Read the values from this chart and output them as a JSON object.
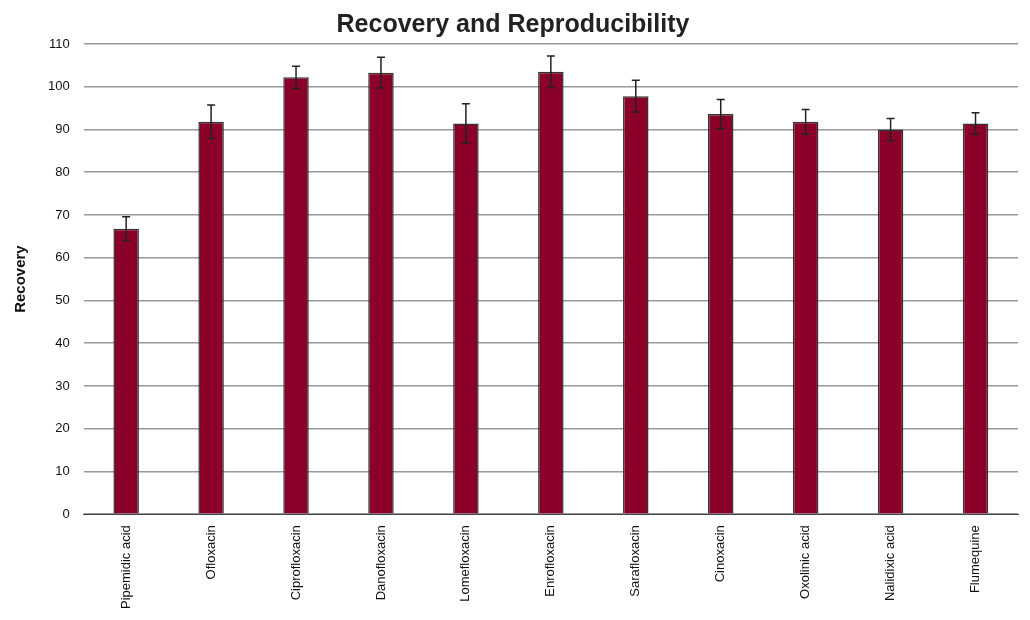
{
  "chart_data": {
    "type": "bar",
    "title": "Recovery and Reproducibility",
    "ylabel": "Recovery",
    "categories": [
      "Pipemidic acid",
      "Ofloxacin",
      "Ciprofloxacin",
      "Danofloxacin",
      "Lomefloxacin",
      "Enrofloxacin",
      "Sarafloxacin",
      "Cinoxacin",
      "Oxolinic acid",
      "Nalidixic acid",
      "Flumequine"
    ],
    "values": [
      66.8,
      91.8,
      102.2,
      103.3,
      91.4,
      103.5,
      97.8,
      93.6,
      91.8,
      90,
      91.4
    ],
    "errors": [
      2.8,
      3.9,
      2.6,
      3.6,
      4.6,
      3.7,
      3.7,
      3.4,
      2.9,
      2.6,
      2.5
    ],
    "color": "#8b0028",
    "ylim": [
      0,
      110
    ],
    "yticks": [
      0,
      10,
      20,
      30,
      40,
      50,
      60,
      70,
      80,
      90,
      100,
      110
    ],
    "grid": "y",
    "legend": false
  }
}
